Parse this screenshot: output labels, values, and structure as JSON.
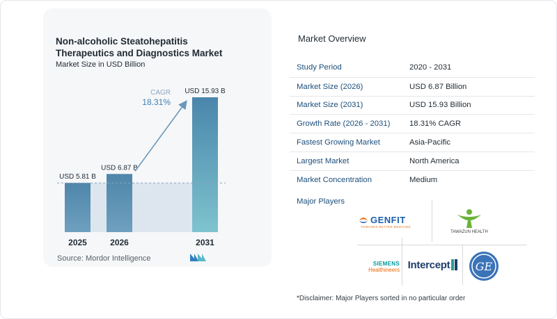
{
  "chart_data": {
    "type": "bar",
    "title": "Non-alcoholic Steatohepatitis Therapeutics and Diagnostics Market",
    "subtitle": "Market Size in USD Billion",
    "categories": [
      "2025",
      "2026",
      "2031"
    ],
    "values": [
      5.81,
      6.87,
      15.93
    ],
    "value_labels": [
      "USD 5.81 B",
      "USD 6.87 B",
      "USD 15.93 B"
    ],
    "cagr_label": "CAGR",
    "cagr_value": "18.31%",
    "source": "Source:  Mordor Intelligence",
    "colors": {
      "bar_top": "#4e86aa",
      "bar_bottom": "#6fa0bf",
      "bar_2031_top": "#4a86ab",
      "bar_2031_bottom": "#7ec3cf",
      "arrow": "#6b97b8",
      "cagr_value": "#3f7fb1",
      "cagr_label": "#8aa6bd"
    }
  },
  "overview": {
    "title": "Market Overview",
    "rows": [
      {
        "key": "Study Period",
        "value": "2020 - 2031"
      },
      {
        "key": "Market Size (2026)",
        "value": "USD 6.87 Billion"
      },
      {
        "key": "Market Size (2031)",
        "value": "USD 15.93 Billion"
      },
      {
        "key": "Growth Rate (2026 - 2031)",
        "value": "18.31% CAGR"
      },
      {
        "key": "Fastest Growing Market",
        "value": "Asia-Pacific"
      },
      {
        "key": "Largest Market",
        "value": "North America"
      },
      {
        "key": "Market Concentration",
        "value": "Medium"
      }
    ]
  },
  "players": {
    "title": "Major Players",
    "genfit": "GENFIT",
    "genfit_tag": "TOWARDS BETTER MEDICINE",
    "tawazun": "TAWAZUN HEALTH",
    "siemens_1": "SIEMENS",
    "siemens_2": "Healthineers",
    "intercept": "Intercept",
    "ge": "GE"
  },
  "disclaimer": "*Disclaimer: Major Players sorted in no particular order"
}
